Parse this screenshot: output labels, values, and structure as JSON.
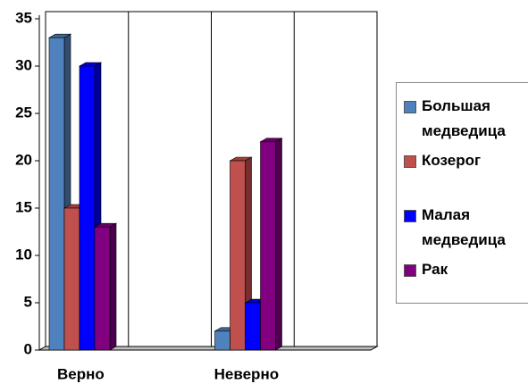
{
  "chart_data": {
    "type": "bar3d",
    "categories": [
      "Верно",
      null,
      "Неверно",
      null
    ],
    "series": [
      {
        "name": "Большая медведица",
        "color": "#4f81bd",
        "values": [
          33,
          null,
          2,
          null
        ]
      },
      {
        "name": "Козерог",
        "color": "#c0504d",
        "values": [
          15,
          null,
          20,
          null
        ]
      },
      {
        "name": "Малая медведица",
        "color": "#0000ff",
        "values": [
          30,
          null,
          5,
          null
        ]
      },
      {
        "name": "Рак",
        "color": "#800080",
        "values": [
          13,
          null,
          22,
          null
        ]
      }
    ],
    "ylim": [
      0,
      35
    ],
    "yticks": [
      0,
      5,
      10,
      15,
      20,
      25,
      30,
      35
    ],
    "grid": true,
    "legend": "right"
  }
}
